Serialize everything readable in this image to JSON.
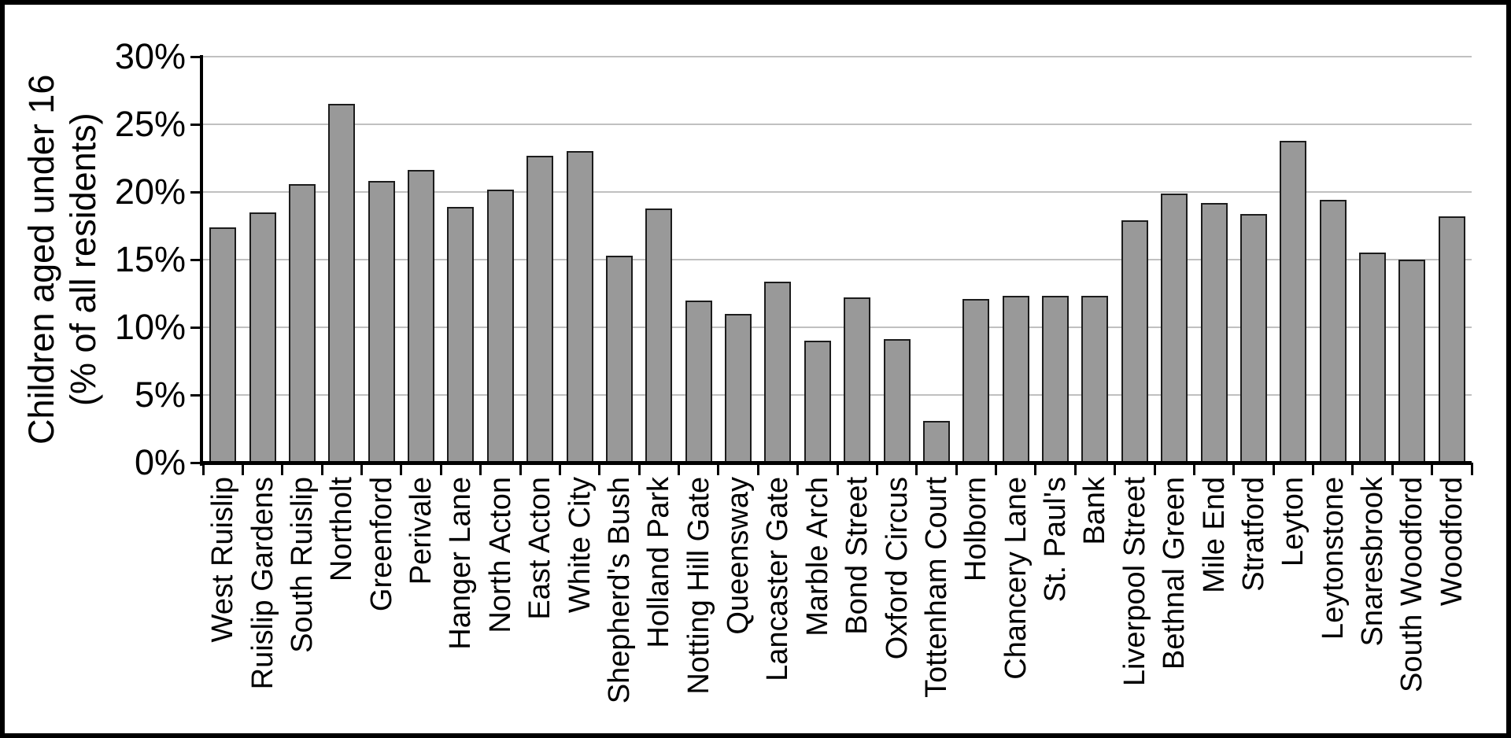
{
  "chart_data": {
    "type": "bar",
    "title": "",
    "y_title_line1": "Children aged under 16",
    "y_title_line2": "(% of all residents)",
    "categories": [
      "West Ruislip",
      "Ruislip Gardens",
      "South Ruislip",
      "Northolt",
      "Greenford",
      "Perivale",
      "Hanger Lane",
      "North Acton",
      "East Acton",
      "White City",
      "Shepherd's Bush",
      "Holland Park",
      "Notting Hill Gate",
      "Queensway",
      "Lancaster Gate",
      "Marble Arch",
      "Bond Street",
      "Oxford Circus",
      "Tottenham Court",
      "Holborn",
      "Chancery Lane",
      "St. Paul's",
      "Bank",
      "Liverpool Street",
      "Bethnal Green",
      "Mile End",
      "Stratford",
      "Leyton",
      "Leytonstone",
      "Snaresbrook",
      "South Woodford",
      "Woodford"
    ],
    "values": [
      17.4,
      18.5,
      20.6,
      26.5,
      20.8,
      21.6,
      18.9,
      20.2,
      22.7,
      23.0,
      15.3,
      18.8,
      12.0,
      11.0,
      13.4,
      9.0,
      12.2,
      9.1,
      3.1,
      12.1,
      12.3,
      12.3,
      12.3,
      17.9,
      19.9,
      19.2,
      18.4,
      23.8,
      19.4,
      15.5,
      15.0,
      18.2
    ],
    "ylim": [
      0,
      30
    ],
    "ytick_step": 5,
    "ytick_labels": [
      "0%",
      "5%",
      "10%",
      "15%",
      "20%",
      "25%",
      "30%"
    ],
    "grid": true,
    "legend": "none",
    "bar_color": "#999999",
    "bar_border_color": "#1c1c1c",
    "gridline_color": "#c0c0c0",
    "axis_color": "#000000",
    "background_color": "#ffffff",
    "frame_border_color": "#000000"
  }
}
